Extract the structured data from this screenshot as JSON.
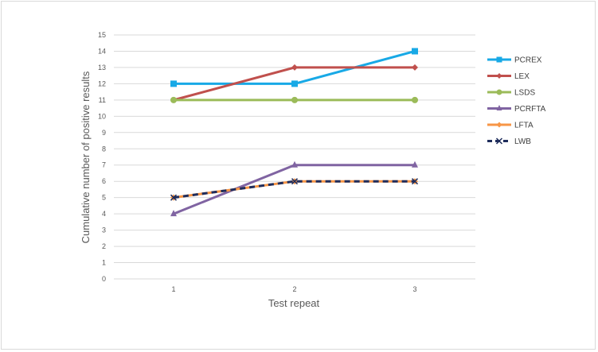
{
  "chart_data": {
    "type": "line",
    "categories": [
      "1",
      "2",
      "3"
    ],
    "xlabel": "Test repeat",
    "ylabel": "Cumulative number of positive results",
    "ylim": [
      0,
      15
    ],
    "yticks": [
      0,
      1,
      2,
      3,
      4,
      5,
      6,
      7,
      8,
      9,
      10,
      11,
      12,
      13,
      14,
      15
    ],
    "grid": true,
    "legend_position": "right",
    "series": [
      {
        "name": "PCREX",
        "values": [
          12,
          12,
          14
        ],
        "color": "#18a9e6",
        "marker": "square",
        "dashed": false
      },
      {
        "name": "LEX",
        "values": [
          11,
          13,
          13
        ],
        "color": "#c0504d",
        "marker": "diamond",
        "dashed": false
      },
      {
        "name": "LSDS",
        "values": [
          11,
          11,
          11
        ],
        "color": "#9bbb59",
        "marker": "circle",
        "dashed": false
      },
      {
        "name": "PCRFTA",
        "values": [
          4,
          7,
          7
        ],
        "color": "#8064a2",
        "marker": "triangle",
        "dashed": false
      },
      {
        "name": "LFTA",
        "values": [
          5,
          6,
          6
        ],
        "color": "#f79646",
        "marker": "diamond",
        "dashed": false
      },
      {
        "name": "LWB",
        "values": [
          5,
          6,
          6
        ],
        "color": "#1f2d5c",
        "marker": "x",
        "dashed": true
      }
    ]
  }
}
